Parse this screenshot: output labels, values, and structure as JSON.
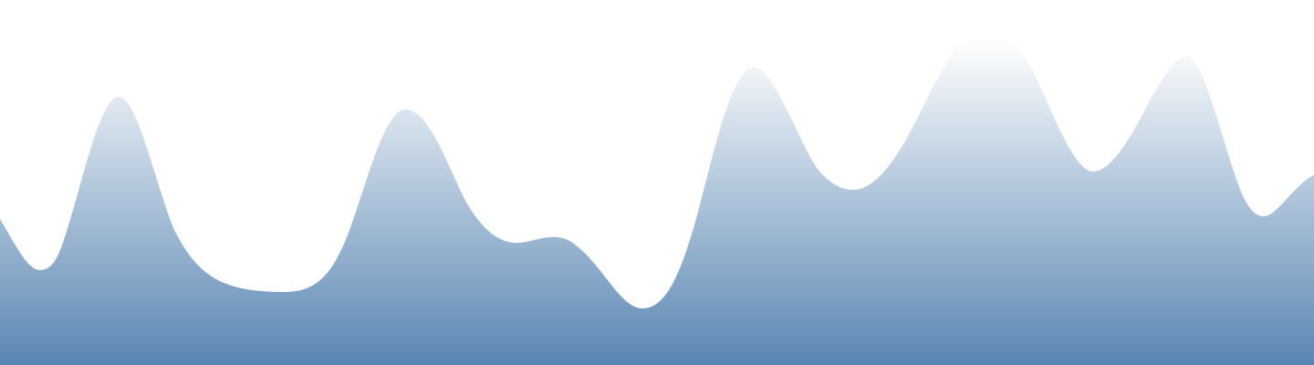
{
  "background_color": "#ffffff",
  "wave": {
    "gradient_top_color": "#ffffff",
    "gradient_bottom_color": "#5a86b3"
  }
}
